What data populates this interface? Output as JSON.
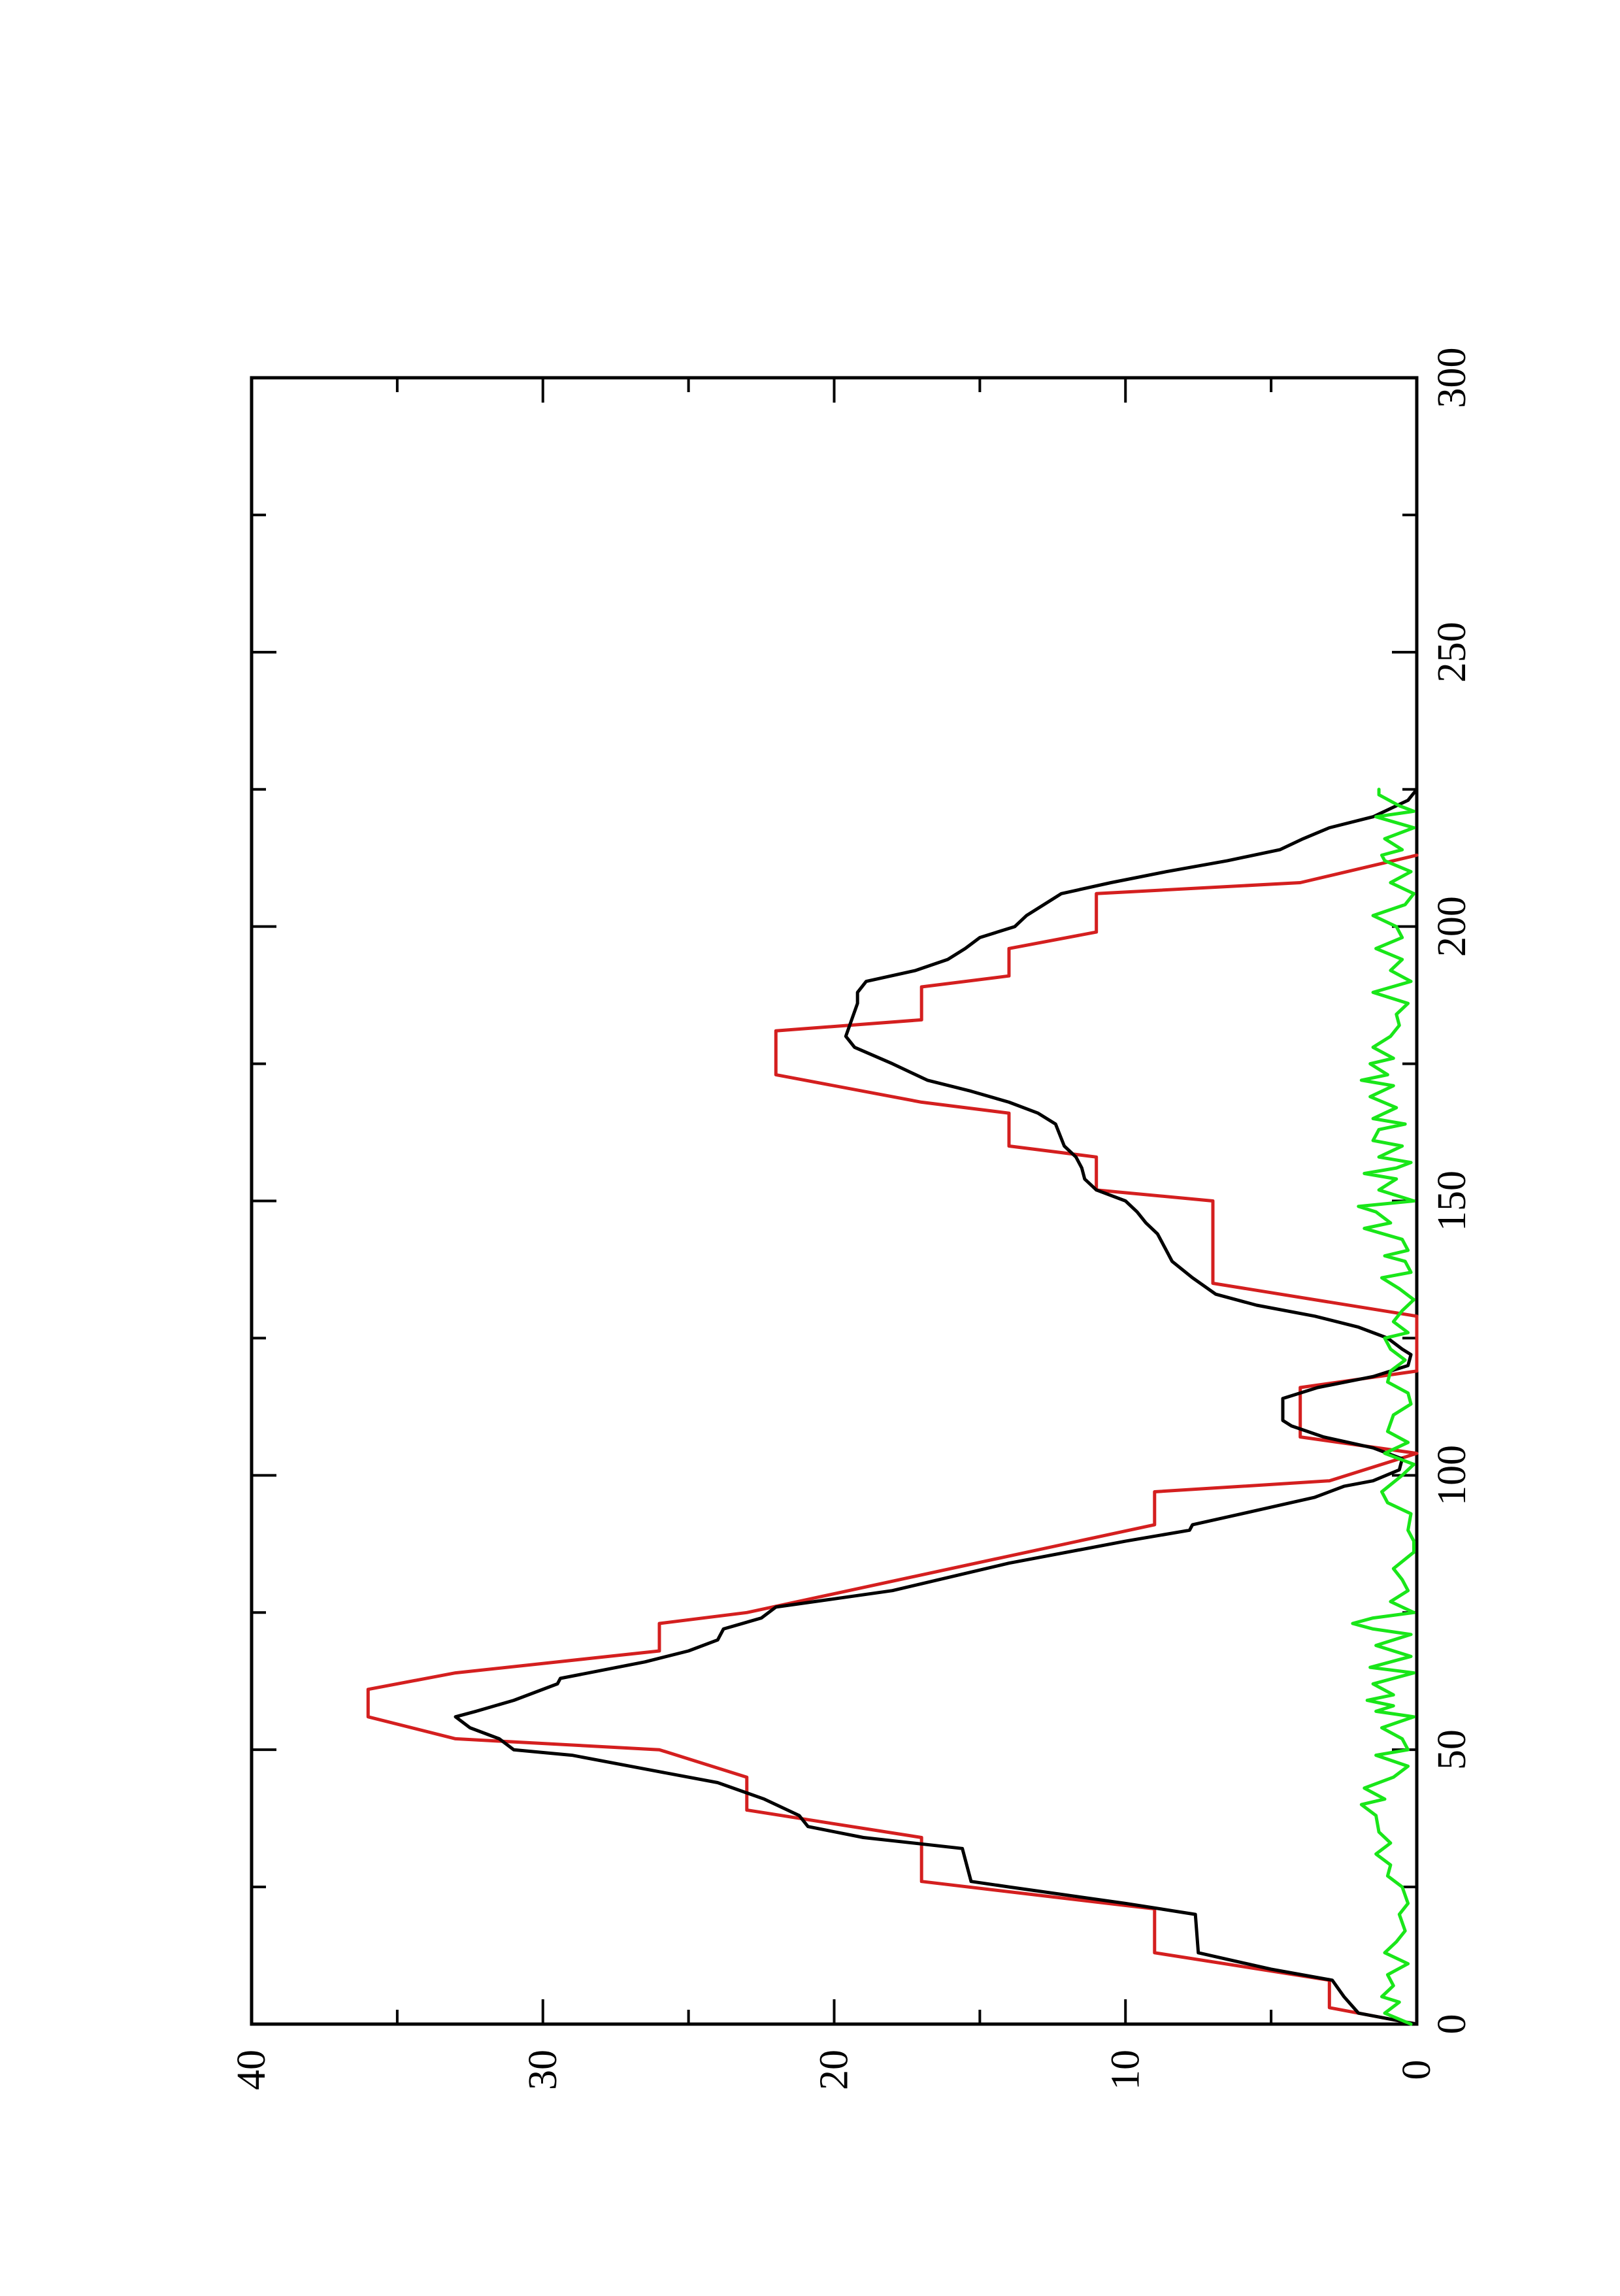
{
  "chart_data": {
    "type": "line",
    "orientation": "rotated-90-ccw",
    "title": "",
    "xlabel": "",
    "ylabel": "",
    "xlim": [
      0,
      300
    ],
    "ylim": [
      0,
      40
    ],
    "x_ticks": [
      "0",
      "50",
      "100",
      "150",
      "200",
      "250",
      "300"
    ],
    "y_ticks": [
      "0",
      "10",
      "20",
      "30",
      "40"
    ],
    "grid": false,
    "legend": "none",
    "series": [
      {
        "color": "#d41f1f",
        "style": "step",
        "points": [
          [
            0,
            0
          ],
          [
            3,
            3
          ],
          [
            8,
            3
          ],
          [
            13,
            9
          ],
          [
            21,
            9
          ],
          [
            26,
            17
          ],
          [
            34,
            17
          ],
          [
            39,
            23
          ],
          [
            45,
            23
          ],
          [
            50,
            26
          ],
          [
            52,
            33
          ],
          [
            56,
            36
          ],
          [
            61,
            36
          ],
          [
            64,
            33
          ],
          [
            68,
            26
          ],
          [
            73,
            26
          ],
          [
            75,
            23
          ],
          [
            91,
            9
          ],
          [
            97,
            9
          ],
          [
            99,
            3
          ],
          [
            104,
            0
          ],
          [
            107,
            4
          ],
          [
            116,
            4
          ],
          [
            119,
            0
          ],
          [
            129,
            0
          ],
          [
            135,
            7
          ],
          [
            150,
            7
          ],
          [
            152,
            11
          ],
          [
            158,
            11
          ],
          [
            160,
            14
          ],
          [
            166,
            14
          ],
          [
            168,
            17
          ],
          [
            173,
            22
          ],
          [
            181,
            22
          ],
          [
            183,
            17
          ],
          [
            189,
            17
          ],
          [
            191,
            14
          ],
          [
            196,
            14
          ],
          [
            199,
            11
          ],
          [
            206,
            11
          ],
          [
            208,
            4
          ],
          [
            213,
            0
          ]
        ]
      },
      {
        "color": "#000000",
        "style": "line",
        "points": [
          [
            0,
            0
          ],
          [
            2,
            2
          ],
          [
            5,
            2.5
          ],
          [
            8,
            2.9
          ],
          [
            10,
            5
          ],
          [
            13,
            7.5
          ],
          [
            20,
            7.6
          ],
          [
            22,
            10
          ],
          [
            25,
            14
          ],
          [
            26,
            15.3
          ],
          [
            32,
            15.6
          ],
          [
            34,
            19
          ],
          [
            36,
            20.9
          ],
          [
            38,
            21.2
          ],
          [
            41,
            22.4
          ],
          [
            44,
            24
          ],
          [
            46,
            26
          ],
          [
            49,
            29
          ],
          [
            50,
            31
          ],
          [
            52,
            31.5
          ],
          [
            54,
            32.5
          ],
          [
            56,
            33
          ],
          [
            57,
            32.3
          ],
          [
            59,
            31
          ],
          [
            62,
            29.5
          ],
          [
            63,
            29.4
          ],
          [
            66,
            26.5
          ],
          [
            68,
            25
          ],
          [
            70,
            24
          ],
          [
            72,
            23.8
          ],
          [
            74,
            22.5
          ],
          [
            76,
            22
          ],
          [
            79,
            18
          ],
          [
            84,
            14
          ],
          [
            88,
            10
          ],
          [
            90,
            7.8
          ],
          [
            91,
            7.7
          ],
          [
            93,
            6
          ],
          [
            96,
            3.5
          ],
          [
            98,
            2.5
          ],
          [
            99,
            1.5
          ],
          [
            101,
            0.6
          ],
          [
            103,
            0.5
          ],
          [
            105,
            1.5
          ],
          [
            107,
            3.2
          ],
          [
            109,
            4.3
          ],
          [
            110,
            4.6
          ],
          [
            114,
            4.6
          ],
          [
            116,
            3.4
          ],
          [
            118,
            1.5
          ],
          [
            120,
            0.3
          ],
          [
            122,
            0.2
          ],
          [
            123,
            0.5
          ],
          [
            125,
            1
          ],
          [
            127,
            2
          ],
          [
            129,
            3.5
          ],
          [
            131,
            5.5
          ],
          [
            133,
            6.9
          ],
          [
            136,
            7.7
          ],
          [
            139,
            8.4
          ],
          [
            141,
            8.6
          ],
          [
            144,
            8.9
          ],
          [
            146,
            9.3
          ],
          [
            148,
            9.6
          ],
          [
            150,
            10
          ],
          [
            152,
            11
          ],
          [
            154,
            11.4
          ],
          [
            156,
            11.5
          ],
          [
            158,
            11.7
          ],
          [
            160,
            12.1
          ],
          [
            164,
            12.4
          ],
          [
            166,
            13
          ],
          [
            168,
            14
          ],
          [
            170,
            15.3
          ],
          [
            172,
            16.8
          ],
          [
            175,
            18
          ],
          [
            178,
            19.3
          ],
          [
            180,
            19.6
          ],
          [
            183,
            19.4
          ],
          [
            186,
            19.2
          ],
          [
            188,
            19.2
          ],
          [
            190,
            18.9
          ],
          [
            192,
            17.2
          ],
          [
            194,
            16.1
          ],
          [
            196,
            15.5
          ],
          [
            198,
            15
          ],
          [
            200,
            13.8
          ],
          [
            202,
            13.4
          ],
          [
            204,
            12.8
          ],
          [
            206,
            12.2
          ],
          [
            208,
            10.5
          ],
          [
            210,
            8.6
          ],
          [
            212,
            6.5
          ],
          [
            214,
            4.7
          ],
          [
            216,
            3.9
          ],
          [
            218,
            3
          ],
          [
            220,
            1.5
          ],
          [
            223,
            0.3
          ],
          [
            225,
            0
          ]
        ]
      },
      {
        "color": "#19e619",
        "style": "line",
        "points": [
          [
            0,
            0.2
          ],
          [
            2,
            1.1
          ],
          [
            4,
            0.6
          ],
          [
            5,
            1.2
          ],
          [
            7,
            0.8
          ],
          [
            9,
            1
          ],
          [
            11,
            0.3
          ],
          [
            13,
            1.1
          ],
          [
            15,
            0.7
          ],
          [
            17,
            0.4
          ],
          [
            20,
            0.6
          ],
          [
            22,
            0.3
          ],
          [
            25,
            0.5
          ],
          [
            27,
            1
          ],
          [
            29,
            0.9
          ],
          [
            31,
            1.4
          ],
          [
            33,
            0.9
          ],
          [
            35,
            1.3
          ],
          [
            38,
            1.4
          ],
          [
            40,
            1.9
          ],
          [
            41,
            1.1
          ],
          [
            43,
            1.8
          ],
          [
            45,
            0.8
          ],
          [
            47,
            0.3
          ],
          [
            49,
            1.4
          ],
          [
            50,
            0.3
          ],
          [
            52,
            0.5
          ],
          [
            54,
            1.2
          ],
          [
            56,
            0.1
          ],
          [
            57,
            1.4
          ],
          [
            58,
            0.8
          ],
          [
            59,
            1.7
          ],
          [
            60,
            0.8
          ],
          [
            62,
            1.5
          ],
          [
            64,
            0.1
          ],
          [
            65,
            1.6
          ],
          [
            67,
            0.2
          ],
          [
            69,
            1.4
          ],
          [
            71,
            0.2
          ],
          [
            72,
            1.5
          ],
          [
            73,
            2.2
          ],
          [
            74,
            1.5
          ],
          [
            75,
            0.1
          ],
          [
            77,
            0.9
          ],
          [
            79,
            0.3
          ],
          [
            81,
            0.5
          ],
          [
            83,
            0.8
          ],
          [
            86,
            0.1
          ],
          [
            88,
            0.1
          ],
          [
            90,
            0.3
          ],
          [
            93,
            0.2
          ],
          [
            95,
            1
          ],
          [
            97,
            1.2
          ],
          [
            100,
            0.5
          ],
          [
            102,
            0.1
          ],
          [
            104,
            1.1
          ],
          [
            106,
            0.3
          ],
          [
            108,
            1
          ],
          [
            111,
            0.8
          ],
          [
            113,
            0.2
          ],
          [
            115,
            0.3
          ],
          [
            117,
            1
          ],
          [
            119,
            0.9
          ],
          [
            121,
            0.4
          ],
          [
            123,
            0.9
          ],
          [
            125,
            1.1
          ],
          [
            126,
            0.3
          ],
          [
            128,
            0.8
          ],
          [
            130,
            0.5
          ],
          [
            132,
            0.1
          ],
          [
            134,
            0.6
          ],
          [
            136,
            1.2
          ],
          [
            137,
            0.2
          ],
          [
            139,
            0.4
          ],
          [
            140,
            1.1
          ],
          [
            141,
            0.3
          ],
          [
            143,
            0.5
          ],
          [
            145,
            1.8
          ],
          [
            146,
            0.9
          ],
          [
            148,
            1.4
          ],
          [
            149,
            2
          ],
          [
            150,
            0.1
          ],
          [
            152,
            1.3
          ],
          [
            154,
            0.7
          ],
          [
            155,
            1.8
          ],
          [
            156,
            0.7
          ],
          [
            157,
            0.2
          ],
          [
            158,
            1.3
          ],
          [
            160,
            0.5
          ],
          [
            161,
            1.5
          ],
          [
            163,
            1.3
          ],
          [
            164,
            0.4
          ],
          [
            165,
            1.5
          ],
          [
            167,
            0.7
          ],
          [
            169,
            1.6
          ],
          [
            171,
            0.8
          ],
          [
            172,
            1.9
          ],
          [
            173,
            1
          ],
          [
            175,
            1.6
          ],
          [
            176,
            0.8
          ],
          [
            178,
            1.5
          ],
          [
            180,
            0.9
          ],
          [
            182,
            0.6
          ],
          [
            184,
            0.7
          ],
          [
            186,
            0.3
          ],
          [
            188,
            1.5
          ],
          [
            190,
            0.2
          ],
          [
            192,
            0.9
          ],
          [
            194,
            0.5
          ],
          [
            196,
            1.4
          ],
          [
            198,
            0.5
          ],
          [
            200,
            0.7
          ],
          [
            202,
            1.5
          ],
          [
            204,
            0.4
          ],
          [
            206,
            0.1
          ],
          [
            208,
            0.9
          ],
          [
            210,
            0.2
          ],
          [
            212,
            1.1
          ],
          [
            213,
            1.2
          ],
          [
            214,
            0.5
          ],
          [
            216,
            1.1
          ],
          [
            218,
            0.1
          ],
          [
            220,
            1.4
          ],
          [
            221,
            0.1
          ],
          [
            222,
            0.6
          ],
          [
            224,
            1.3
          ],
          [
            225,
            1.3
          ]
        ]
      }
    ]
  }
}
